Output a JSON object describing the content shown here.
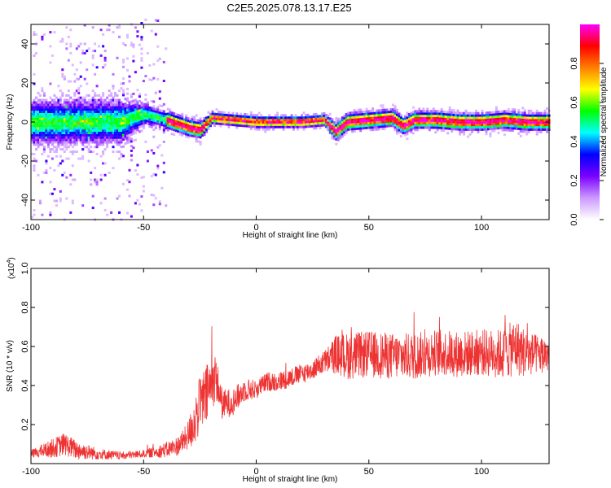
{
  "title": "C2E5.2025.078.13.17.E25",
  "chart_data": [
    {
      "type": "heatmap",
      "xlabel": "Height of straight line (km)",
      "ylabel": "Frequency (Hz)",
      "xlim": [
        -100,
        130
      ],
      "ylim": [
        -50,
        50
      ],
      "x_ticks": [
        -100,
        -50,
        0,
        50,
        100
      ],
      "y_ticks": [
        -40,
        -20,
        0,
        20,
        40
      ],
      "colorbar": {
        "label": "Normalized spectral amplitude",
        "range": [
          0,
          1
        ],
        "ticks": [
          0.0,
          0.2,
          0.4,
          0.6,
          0.8
        ],
        "colors": [
          "#ffffff",
          "#cc99ff",
          "#7a00ff",
          "#0000ff",
          "#00ffff",
          "#00ff00",
          "#ffff00",
          "#ff7f00",
          "#ff0000",
          "#ff00ff"
        ]
      },
      "peak_frequency_track": {
        "x": [
          -100,
          -80,
          -60,
          -55,
          -50,
          -40,
          -30,
          -25,
          -20,
          -10,
          0,
          10,
          20,
          30,
          35,
          40,
          50,
          60,
          65,
          70,
          80,
          90,
          100,
          110,
          120,
          130
        ],
        "y": [
          0,
          0,
          0,
          2,
          4,
          1,
          -3,
          -4,
          2,
          1,
          0,
          0,
          0,
          1,
          -5,
          0,
          1,
          2,
          -2,
          1,
          1,
          0,
          0,
          1,
          0,
          0
        ],
        "spread_hz": [
          8,
          8,
          8,
          6,
          4,
          3,
          3,
          3,
          2,
          2,
          2,
          2,
          2,
          2,
          3,
          3,
          3,
          3,
          3,
          3,
          3,
          3,
          3,
          3,
          3,
          3
        ]
      },
      "noise_region_x": [
        -100,
        -40
      ]
    },
    {
      "type": "line",
      "xlabel": "Height of straight line (km)",
      "ylabel": "SNR (10 * v/v)",
      "y_multiplier": "(x10",
      "y_multiplier_exp": "4",
      "y_multiplier_close": ")",
      "xlim": [
        -100,
        130
      ],
      "ylim": [
        0,
        1.0
      ],
      "x_ticks": [
        -100,
        -50,
        0,
        50,
        100
      ],
      "y_ticks": [
        0.2,
        0.4,
        0.6,
        0.8,
        1.0
      ],
      "series": [
        {
          "color": "#ee3333",
          "x": [
            -100,
            -90,
            -85,
            -80,
            -70,
            -60,
            -50,
            -45,
            -40,
            -35,
            -32,
            -30,
            -28,
            -25,
            -22,
            -20,
            -18,
            -15,
            -10,
            -5,
            0,
            5,
            10,
            15,
            20,
            25,
            30,
            33,
            35,
            40,
            50,
            60,
            70,
            80,
            90,
            100,
            110,
            115,
            120,
            125,
            130
          ],
          "y": [
            0.05,
            0.08,
            0.1,
            0.07,
            0.05,
            0.04,
            0.05,
            0.06,
            0.07,
            0.09,
            0.12,
            0.15,
            0.2,
            0.3,
            0.35,
            0.4,
            0.45,
            0.3,
            0.32,
            0.38,
            0.38,
            0.42,
            0.42,
            0.44,
            0.46,
            0.48,
            0.52,
            0.54,
            0.56,
            0.55,
            0.56,
            0.55,
            0.55,
            0.57,
            0.56,
            0.57,
            0.56,
            0.6,
            0.56,
            0.56,
            0.56
          ],
          "noise": [
            0.02,
            0.05,
            0.06,
            0.05,
            0.03,
            0.02,
            0.02,
            0.03,
            0.04,
            0.05,
            0.06,
            0.08,
            0.12,
            0.15,
            0.16,
            0.15,
            0.12,
            0.08,
            0.07,
            0.06,
            0.05,
            0.05,
            0.05,
            0.05,
            0.05,
            0.05,
            0.06,
            0.08,
            0.1,
            0.12,
            0.12,
            0.12,
            0.12,
            0.12,
            0.12,
            0.12,
            0.13,
            0.15,
            0.12,
            0.1,
            0.1
          ]
        }
      ]
    }
  ]
}
